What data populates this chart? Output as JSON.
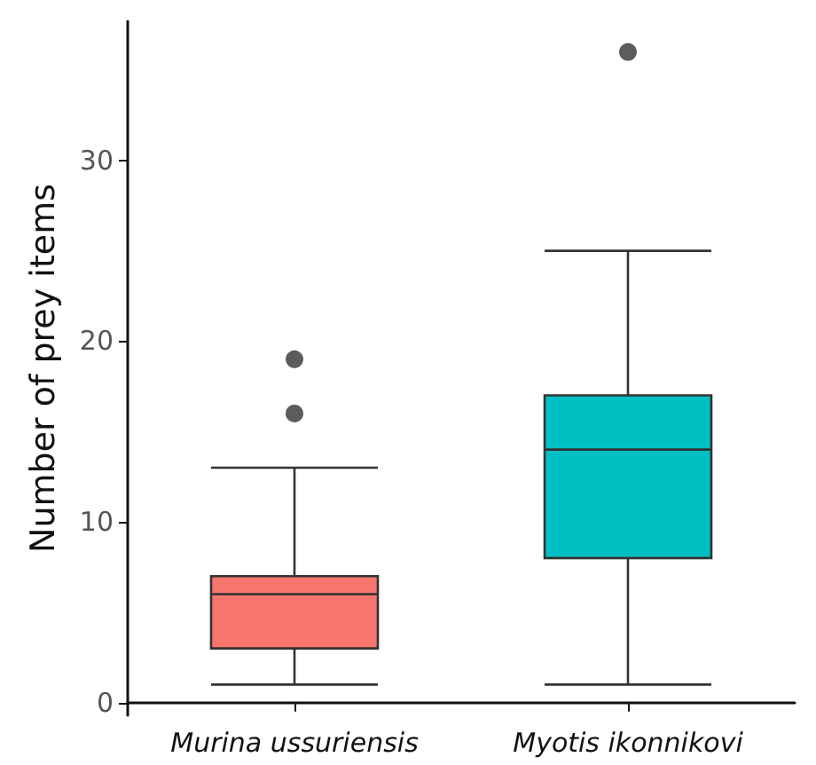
{
  "chart_data": {
    "type": "box",
    "ylabel": "Number of prey items",
    "categories": [
      "Murina ussuriensis",
      "Myotis ikonnikovi"
    ],
    "boxes": [
      {
        "low": 1,
        "q1": 3,
        "median": 6,
        "q3": 7,
        "high": 13,
        "outliers": [
          16,
          19
        ]
      },
      {
        "low": 1,
        "q1": 8,
        "median": 14,
        "q3": 17,
        "high": 25,
        "outliers": [
          36
        ]
      }
    ],
    "colors": [
      "#f8766d",
      "#00bfc4"
    ],
    "ylim": [
      -0.7,
      37.7
    ],
    "yticks": [
      0,
      10,
      20,
      30
    ],
    "grid": false
  }
}
